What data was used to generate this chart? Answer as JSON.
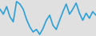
{
  "values": [
    60,
    50,
    65,
    45,
    35,
    75,
    70,
    60,
    40,
    25,
    15,
    20,
    10,
    22,
    38,
    48,
    28,
    20,
    38,
    55,
    70,
    50,
    60,
    72,
    52,
    38,
    52,
    42,
    55,
    48
  ],
  "line_color": "#2b9fd9",
  "bg_color": "#e0e0e0",
  "linewidth": 1.2
}
